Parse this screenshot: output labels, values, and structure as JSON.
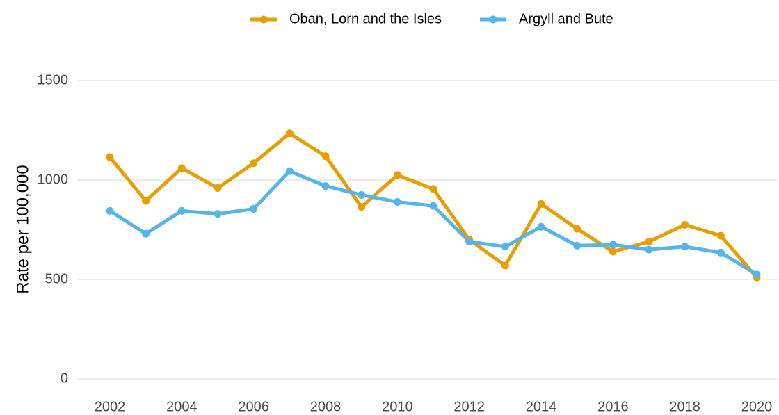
{
  "chart_data": {
    "type": "line",
    "y_label": "Rate per 100,000",
    "x": [
      2002,
      2003,
      2004,
      2005,
      2006,
      2007,
      2008,
      2009,
      2010,
      2011,
      2012,
      2013,
      2014,
      2015,
      2016,
      2017,
      2018,
      2019,
      2020
    ],
    "series": [
      {
        "name": "Oban, Lorn and the Isles",
        "color": "#E69F00",
        "values": [
          1115,
          895,
          1060,
          960,
          1085,
          1235,
          1120,
          865,
          1025,
          955,
          700,
          570,
          880,
          755,
          640,
          690,
          775,
          720,
          510
        ]
      },
      {
        "name": "Argyll and Bute",
        "color": "#56B4E9",
        "values": [
          845,
          730,
          845,
          830,
          855,
          1045,
          970,
          925,
          890,
          870,
          690,
          665,
          765,
          670,
          675,
          650,
          665,
          635,
          525
        ]
      }
    ],
    "xlim": [
      2001.1,
      2020.6
    ],
    "xticks": [
      2002,
      2004,
      2006,
      2008,
      2010,
      2012,
      2014,
      2016,
      2018,
      2020
    ],
    "ylim": [
      0,
      1500
    ],
    "yticks": [
      0,
      500,
      1000,
      1500
    ],
    "grid": true,
    "legend": "top"
  }
}
